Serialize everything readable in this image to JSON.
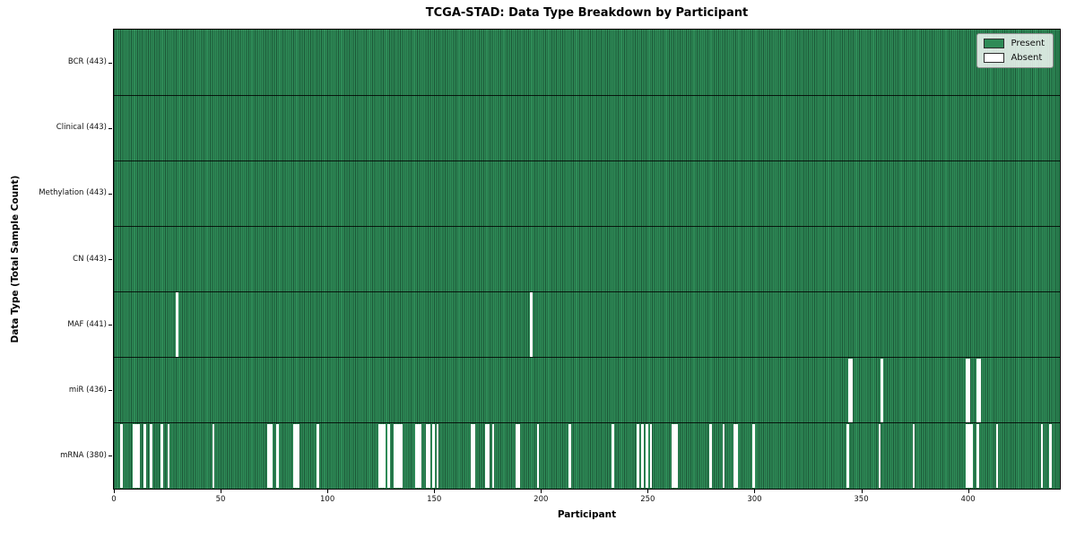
{
  "chart_data": {
    "type": "heatmap",
    "title": "TCGA-STAD: Data Type Breakdown by Participant",
    "xlabel": "Participant",
    "ylabel": "Data Type (Total Sample Count)",
    "n_participants": 443,
    "xlim": [
      0,
      443
    ],
    "x_ticks": [
      0,
      50,
      100,
      150,
      200,
      250,
      300,
      350,
      400
    ],
    "grid": false,
    "legend_position": "upper right",
    "legend": {
      "present_label": "Present",
      "absent_label": "Absent"
    },
    "colors": {
      "present": "#2e8b57",
      "absent": "#ffffff",
      "bar_edge": "#1c5737",
      "axis": "#000000"
    },
    "rows": [
      {
        "name": "BCR",
        "label": "BCR (443)",
        "present_count": 443,
        "absent_participants": []
      },
      {
        "name": "Clinical",
        "label": "Clinical (443)",
        "present_count": 443,
        "absent_participants": []
      },
      {
        "name": "Methylation",
        "label": "Methylation (443)",
        "present_count": 443,
        "absent_participants": []
      },
      {
        "name": "CN",
        "label": "CN (443)",
        "present_count": 443,
        "absent_participants": []
      },
      {
        "name": "MAF",
        "label": "MAF (441)",
        "present_count": 441,
        "absent_participants": [
          29,
          195
        ]
      },
      {
        "name": "miR",
        "label": "miR (436)",
        "present_count": 436,
        "absent_participants": [
          344,
          345,
          359,
          399,
          400,
          404,
          405
        ]
      },
      {
        "name": "mRNA",
        "label": "mRNA (380)",
        "present_count": 380,
        "absent_participants": [
          3,
          9,
          10,
          11,
          14,
          17,
          22,
          25,
          46,
          72,
          73,
          76,
          84,
          85,
          86,
          95,
          124,
          125,
          126,
          128,
          131,
          132,
          133,
          134,
          141,
          142,
          143,
          146,
          147,
          149,
          151,
          167,
          168,
          174,
          175,
          177,
          188,
          189,
          198,
          213,
          233,
          245,
          247,
          249,
          251,
          261,
          262,
          263,
          279,
          285,
          290,
          291,
          299,
          343,
          358,
          374,
          399,
          400,
          401,
          404,
          413,
          434,
          438
        ]
      }
    ]
  }
}
